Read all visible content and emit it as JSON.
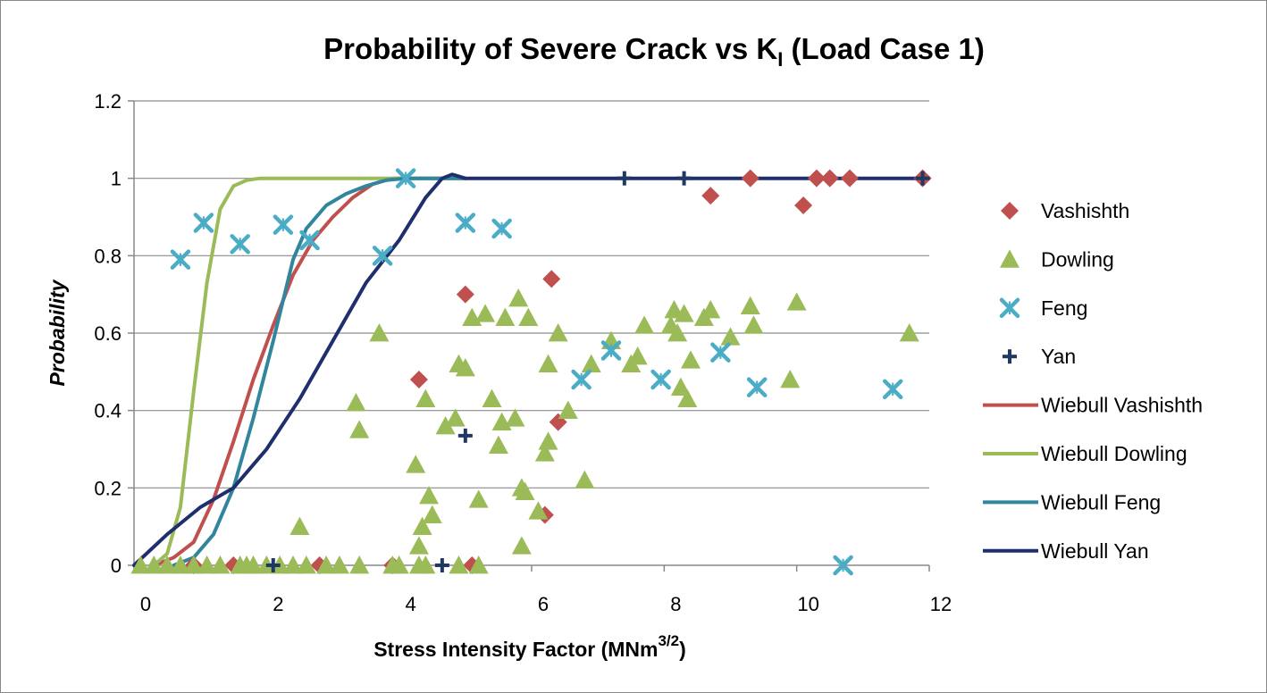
{
  "chart_data": {
    "type": "scatter",
    "title": {
      "main": "Probability of Severe Crack vs K",
      "subscript": "I",
      "tail": " (Load Case 1)"
    },
    "xlabel": {
      "main": "Stress Intensity Factor (MNm",
      "superscript": "3/2",
      "tail": ")"
    },
    "ylabel": "Probability",
    "xlim": [
      0,
      12
    ],
    "ylim": [
      0,
      1.2
    ],
    "x_ticks": [
      "0",
      "2",
      "4",
      "6",
      "8",
      "10",
      "12"
    ],
    "y_ticks": [
      "0",
      "0.2",
      "0.4",
      "0.6",
      "0.8",
      "1",
      "1.2"
    ],
    "grid": "horizontal",
    "legend_position": "right",
    "series": [
      {
        "name": "Vashishth",
        "kind": "points",
        "marker": "diamond",
        "color": "#C0504D",
        "points": [
          [
            0.9,
            0
          ],
          [
            1.5,
            0
          ],
          [
            2.8,
            0
          ],
          [
            3.9,
            0
          ],
          [
            4.3,
            0.48
          ],
          [
            5.0,
            0.7
          ],
          [
            5.1,
            0
          ],
          [
            6.2,
            0.13
          ],
          [
            6.3,
            0.74
          ],
          [
            6.4,
            0.37
          ],
          [
            8.7,
            0.955
          ],
          [
            9.3,
            1.0
          ],
          [
            10.1,
            0.93
          ],
          [
            10.3,
            1.0
          ],
          [
            10.5,
            1.0
          ],
          [
            10.8,
            1.0
          ],
          [
            11.9,
            1.0
          ]
        ]
      },
      {
        "name": "Dowling",
        "kind": "points",
        "marker": "triangle",
        "color": "#9BBB59",
        "points": [
          [
            0.1,
            0
          ],
          [
            0.3,
            0
          ],
          [
            0.5,
            0
          ],
          [
            0.7,
            0
          ],
          [
            0.9,
            0
          ],
          [
            1.1,
            0
          ],
          [
            1.3,
            0
          ],
          [
            1.6,
            0
          ],
          [
            1.7,
            0
          ],
          [
            1.8,
            0
          ],
          [
            2.0,
            0
          ],
          [
            2.2,
            0
          ],
          [
            2.4,
            0
          ],
          [
            2.6,
            0
          ],
          [
            2.9,
            0
          ],
          [
            3.1,
            0
          ],
          [
            3.4,
            0
          ],
          [
            3.9,
            0
          ],
          [
            4.0,
            0
          ],
          [
            4.3,
            0
          ],
          [
            4.4,
            0
          ],
          [
            4.9,
            0
          ],
          [
            5.2,
            0
          ],
          [
            2.5,
            0.1
          ],
          [
            3.35,
            0.42
          ],
          [
            3.4,
            0.35
          ],
          [
            3.7,
            0.6
          ],
          [
            4.25,
            0.26
          ],
          [
            4.3,
            0.05
          ],
          [
            4.35,
            0.1
          ],
          [
            4.4,
            0.43
          ],
          [
            4.45,
            0.18
          ],
          [
            4.5,
            0.13
          ],
          [
            4.7,
            0.36
          ],
          [
            4.85,
            0.38
          ],
          [
            4.9,
            0.52
          ],
          [
            5.0,
            0.51
          ],
          [
            5.1,
            0.64
          ],
          [
            5.2,
            0.17
          ],
          [
            5.3,
            0.65
          ],
          [
            5.4,
            0.43
          ],
          [
            5.5,
            0.31
          ],
          [
            5.55,
            0.37
          ],
          [
            5.6,
            0.64
          ],
          [
            5.75,
            0.38
          ],
          [
            5.8,
            0.69
          ],
          [
            5.85,
            0.05
          ],
          [
            5.85,
            0.2
          ],
          [
            5.9,
            0.19
          ],
          [
            5.95,
            0.64
          ],
          [
            6.1,
            0.14
          ],
          [
            6.2,
            0.29
          ],
          [
            6.25,
            0.32
          ],
          [
            6.25,
            0.52
          ],
          [
            6.4,
            0.6
          ],
          [
            6.55,
            0.4
          ],
          [
            6.8,
            0.22
          ],
          [
            6.9,
            0.52
          ],
          [
            7.2,
            0.58
          ],
          [
            7.5,
            0.52
          ],
          [
            7.6,
            0.54
          ],
          [
            7.7,
            0.62
          ],
          [
            8.1,
            0.62
          ],
          [
            8.15,
            0.66
          ],
          [
            8.2,
            0.6
          ],
          [
            8.25,
            0.46
          ],
          [
            8.3,
            0.65
          ],
          [
            8.35,
            0.43
          ],
          [
            8.4,
            0.53
          ],
          [
            8.6,
            0.64
          ],
          [
            8.7,
            0.66
          ],
          [
            9.0,
            0.59
          ],
          [
            9.3,
            0.67
          ],
          [
            9.35,
            0.62
          ],
          [
            9.9,
            0.48
          ],
          [
            10.0,
            0.68
          ],
          [
            11.7,
            0.6
          ]
        ]
      },
      {
        "name": "Feng",
        "kind": "points",
        "marker": "x-star",
        "color": "#4BACC6",
        "points": [
          [
            0.7,
            0.79
          ],
          [
            1.05,
            0.885
          ],
          [
            1.6,
            0.83
          ],
          [
            2.25,
            0.88
          ],
          [
            2.65,
            0.84
          ],
          [
            3.75,
            0.8
          ],
          [
            4.1,
            1.0
          ],
          [
            5.0,
            0.885
          ],
          [
            5.55,
            0.87
          ],
          [
            6.75,
            0.48
          ],
          [
            7.2,
            0.555
          ],
          [
            7.95,
            0.48
          ],
          [
            8.85,
            0.55
          ],
          [
            9.4,
            0.46
          ],
          [
            10.7,
            0
          ],
          [
            11.45,
            0.455
          ]
        ]
      },
      {
        "name": "Yan",
        "kind": "points",
        "marker": "plus",
        "color": "#1F3864",
        "points": [
          [
            2.1,
            0
          ],
          [
            4.65,
            0
          ],
          [
            5.0,
            0.335
          ],
          [
            7.4,
            1.0
          ],
          [
            8.3,
            1.0
          ],
          [
            11.9,
            1.0
          ]
        ]
      },
      {
        "name": "Wiebull Vashishth",
        "kind": "line",
        "color": "#C0504D",
        "points": [
          [
            0.3,
            0
          ],
          [
            0.6,
            0.02
          ],
          [
            0.9,
            0.06
          ],
          [
            1.2,
            0.17
          ],
          [
            1.5,
            0.32
          ],
          [
            1.8,
            0.48
          ],
          [
            2.1,
            0.62
          ],
          [
            2.4,
            0.75
          ],
          [
            2.7,
            0.84
          ],
          [
            3.0,
            0.9
          ],
          [
            3.3,
            0.95
          ],
          [
            3.6,
            0.985
          ],
          [
            3.9,
            1.0
          ],
          [
            4.2,
            1.0
          ],
          [
            4.8,
            1.0
          ],
          [
            5.0,
            1.0
          ]
        ]
      },
      {
        "name": "Wiebull Dowling",
        "kind": "line",
        "color": "#9BBB59",
        "points": [
          [
            0.3,
            0
          ],
          [
            0.5,
            0.03
          ],
          [
            0.7,
            0.15
          ],
          [
            0.9,
            0.45
          ],
          [
            1.1,
            0.73
          ],
          [
            1.3,
            0.92
          ],
          [
            1.5,
            0.98
          ],
          [
            1.7,
            0.995
          ],
          [
            1.9,
            1.0
          ],
          [
            2.5,
            1.0
          ],
          [
            3.5,
            1.0
          ],
          [
            4.5,
            1.0
          ],
          [
            5.0,
            1.0
          ]
        ]
      },
      {
        "name": "Wiebull Feng",
        "kind": "line",
        "color": "#31859C",
        "points": [
          [
            0.6,
            0
          ],
          [
            0.9,
            0.02
          ],
          [
            1.2,
            0.08
          ],
          [
            1.5,
            0.2
          ],
          [
            1.8,
            0.38
          ],
          [
            2.1,
            0.58
          ],
          [
            2.4,
            0.79
          ],
          [
            2.6,
            0.87
          ],
          [
            2.9,
            0.93
          ],
          [
            3.2,
            0.96
          ],
          [
            3.5,
            0.98
          ],
          [
            3.8,
            0.995
          ],
          [
            4.1,
            1.0
          ],
          [
            4.5,
            1.0
          ],
          [
            5.0,
            1.0
          ]
        ]
      },
      {
        "name": "Wiebull Yan",
        "kind": "line",
        "color": "#1F2F6E",
        "points": [
          [
            0.0,
            0
          ],
          [
            0.5,
            0.08
          ],
          [
            1.0,
            0.15
          ],
          [
            1.5,
            0.2
          ],
          [
            2.0,
            0.3
          ],
          [
            2.5,
            0.43
          ],
          [
            3.0,
            0.58
          ],
          [
            3.5,
            0.73
          ],
          [
            4.0,
            0.84
          ],
          [
            4.4,
            0.95
          ],
          [
            4.65,
            1.0
          ],
          [
            4.8,
            1.01
          ],
          [
            5.0,
            1.0
          ],
          [
            6.0,
            1.0
          ],
          [
            8.0,
            1.0
          ],
          [
            10.0,
            1.0
          ],
          [
            11.9,
            1.0
          ]
        ]
      }
    ]
  }
}
